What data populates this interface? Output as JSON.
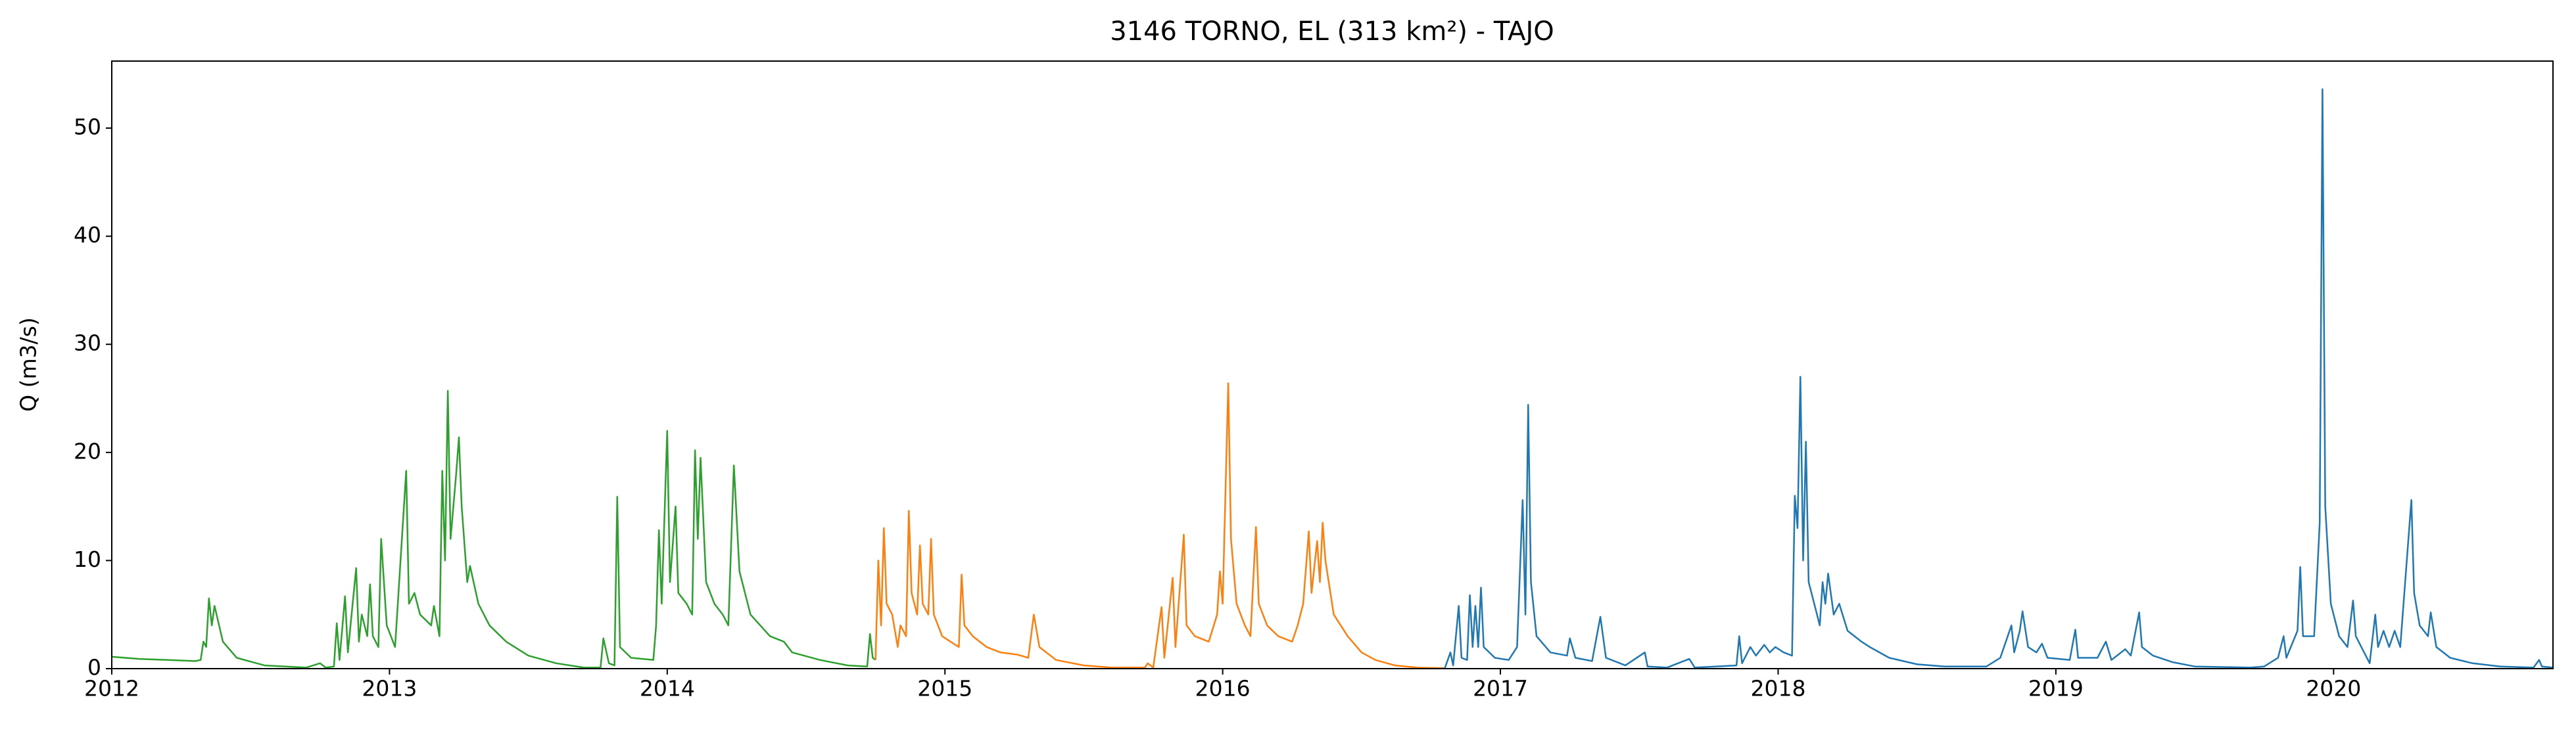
{
  "chart_data": {
    "type": "line",
    "title": "3146 TORNO, EL (313 km²) - TAJO",
    "y_label": "Q (m3/s)",
    "xlim": [
      2012,
      2020.79
    ],
    "xticks": [
      2012,
      2013,
      2014,
      2015,
      2016,
      2017,
      2018,
      2019,
      2020
    ],
    "ylim": [
      0,
      56.2
    ],
    "yticks": [
      0,
      10,
      20,
      30,
      40,
      50
    ],
    "grid": false,
    "series": [
      {
        "color": "#2ca02c",
        "x": [
          2012.0,
          2012.1,
          2012.2,
          2012.3,
          2012.32,
          2012.33,
          2012.34,
          2012.35,
          2012.36,
          2012.37,
          2012.4,
          2012.45,
          2012.55,
          2012.7,
          2012.75,
          2012.77,
          2012.8,
          2012.81,
          2012.82,
          2012.84,
          2012.85,
          2012.88,
          2012.89,
          2012.9,
          2012.92,
          2012.93,
          2012.94,
          2012.96,
          2012.97,
          2012.99,
          2013.02,
          2013.06,
          2013.07,
          2013.09,
          2013.11,
          2013.15,
          2013.16,
          2013.18,
          2013.19,
          2013.2,
          2013.21,
          2013.22,
          2013.24,
          2013.25,
          2013.26,
          2013.28,
          2013.29,
          2013.32,
          2013.36,
          2013.42,
          2013.5,
          2013.6,
          2013.7,
          2013.76,
          2013.77,
          2013.79,
          2013.81,
          2013.82,
          2013.83,
          2013.87,
          2013.95,
          2013.96,
          2013.97,
          2013.98,
          2014.0,
          2014.01,
          2014.03,
          2014.04,
          2014.07,
          2014.09,
          2014.1,
          2014.11,
          2014.12,
          2014.14,
          2014.17,
          2014.2,
          2014.22,
          2014.24,
          2014.26,
          2014.3,
          2014.37,
          2014.42,
          2014.45,
          2014.55,
          2014.65,
          2014.72,
          2014.73,
          2014.74,
          2014.75
        ],
        "values": [
          1.1,
          0.9,
          0.8,
          0.7,
          0.8,
          2.5,
          2.0,
          6.5,
          4.0,
          5.8,
          2.5,
          1.0,
          0.3,
          0.1,
          0.5,
          0.1,
          0.2,
          4.2,
          0.8,
          6.7,
          1.5,
          9.3,
          2.5,
          5.0,
          3.0,
          7.8,
          3.0,
          2.0,
          12.0,
          4.0,
          2.0,
          18.3,
          6.0,
          7.0,
          5.0,
          4.0,
          5.8,
          3.0,
          18.3,
          10,
          25.7,
          12,
          18,
          21.4,
          15,
          8,
          9.5,
          6,
          4,
          2.5,
          1.2,
          0.5,
          0.1,
          0.1,
          2.8,
          0.5,
          0.3,
          15.9,
          2.0,
          1.0,
          0.8,
          4.0,
          12.8,
          6,
          22.0,
          8,
          15,
          7,
          6,
          5,
          20.2,
          12,
          19.5,
          8,
          6,
          5,
          4,
          18.8,
          9,
          5,
          3,
          2.5,
          1.5,
          0.8,
          0.3,
          0.2,
          3.2,
          1.0,
          0.8
        ]
      },
      {
        "color": "#ff7f0e",
        "x": [
          2014.75,
          2014.76,
          2014.77,
          2014.78,
          2014.79,
          2014.81,
          2014.83,
          2014.84,
          2014.86,
          2014.87,
          2014.88,
          2014.9,
          2014.91,
          2014.92,
          2014.94,
          2014.95,
          2014.96,
          2014.99,
          2015.02,
          2015.05,
          2015.06,
          2015.07,
          2015.1,
          2015.15,
          2015.2,
          2015.26,
          2015.3,
          2015.32,
          2015.34,
          2015.4,
          2015.5,
          2015.6,
          2015.72,
          2015.73,
          2015.75,
          2015.78,
          2015.79,
          2015.82,
          2015.83,
          2015.86,
          2015.87,
          2015.9,
          2015.95,
          2015.98,
          2015.99,
          2016.0,
          2016.02,
          2016.03,
          2016.05,
          2016.08,
          2016.1,
          2016.12,
          2016.13,
          2016.16,
          2016.2,
          2016.25,
          2016.27,
          2016.29,
          2016.31,
          2016.32,
          2016.34,
          2016.35,
          2016.36,
          2016.37,
          2016.4,
          2016.45,
          2016.5,
          2016.55,
          2016.62,
          2016.7,
          2016.8
        ],
        "values": [
          0.8,
          10,
          4,
          13,
          6,
          5,
          2,
          4,
          3,
          14.6,
          7,
          5,
          11.4,
          6,
          5,
          12,
          5,
          3,
          2.5,
          2,
          8.7,
          4,
          3,
          2,
          1.5,
          1.3,
          1.0,
          5.0,
          2,
          0.8,
          0.3,
          0.1,
          0.1,
          0.5,
          0.1,
          5.7,
          1,
          8.4,
          2,
          12.4,
          4,
          3,
          2.5,
          5,
          9,
          6,
          26.4,
          12,
          6,
          4,
          3,
          13.1,
          6,
          4,
          3,
          2.5,
          4,
          6,
          12.7,
          7,
          11.8,
          8,
          13.5,
          10,
          5,
          3,
          1.5,
          0.8,
          0.3,
          0.1,
          0.05
        ]
      },
      {
        "color": "#1f77b4",
        "x": [
          2016.8,
          2016.82,
          2016.83,
          2016.85,
          2016.86,
          2016.88,
          2016.89,
          2016.9,
          2016.91,
          2016.92,
          2016.93,
          2016.94,
          2016.98,
          2017.03,
          2017.06,
          2017.08,
          2017.09,
          2017.1,
          2017.11,
          2017.13,
          2017.18,
          2017.24,
          2017.25,
          2017.27,
          2017.33,
          2017.36,
          2017.38,
          2017.45,
          2017.52,
          2017.53,
          2017.6,
          2017.68,
          2017.7,
          2017.85,
          2017.86,
          2017.87,
          2017.9,
          2017.92,
          2017.95,
          2017.97,
          2017.99,
          2018.02,
          2018.05,
          2018.06,
          2018.07,
          2018.08,
          2018.09,
          2018.1,
          2018.11,
          2018.13,
          2018.15,
          2018.16,
          2018.17,
          2018.18,
          2018.2,
          2018.22,
          2018.25,
          2018.3,
          2018.33,
          2018.4,
          2018.5,
          2018.6,
          2018.75,
          2018.8,
          2018.84,
          2018.85,
          2018.87,
          2018.88,
          2018.9,
          2018.93,
          2018.95,
          2018.97,
          2019.05,
          2019.07,
          2019.08,
          2019.15,
          2019.18,
          2019.2,
          2019.25,
          2019.27,
          2019.3,
          2019.31,
          2019.35,
          2019.42,
          2019.5,
          2019.7,
          2019.75,
          2019.8,
          2019.82,
          2019.83,
          2019.87,
          2019.88,
          2019.89,
          2019.93,
          2019.95,
          2019.96,
          2019.97,
          2019.99,
          2020.02,
          2020.05,
          2020.07,
          2020.08,
          2020.1,
          2020.13,
          2020.15,
          2020.16,
          2020.18,
          2020.2,
          2020.22,
          2020.24,
          2020.28,
          2020.29,
          2020.31,
          2020.34,
          2020.35,
          2020.37,
          2020.42,
          2020.5,
          2020.6,
          2020.72,
          2020.74,
          2020.75,
          2020.79
        ],
        "values": [
          0.05,
          1.5,
          0.3,
          5.8,
          1,
          0.8,
          6.8,
          2,
          5.8,
          2,
          7.5,
          2,
          1,
          0.8,
          2,
          15.6,
          5,
          24.4,
          8,
          3,
          1.5,
          1.2,
          2.8,
          1,
          0.7,
          4.8,
          1,
          0.3,
          1.5,
          0.2,
          0.1,
          0.9,
          0.1,
          0.3,
          3,
          0.5,
          2,
          1.2,
          2.2,
          1.5,
          2.0,
          1.5,
          1.2,
          16,
          13,
          27.0,
          10,
          21,
          8,
          6,
          4,
          8,
          6,
          8.8,
          5,
          6,
          3.5,
          2.5,
          2,
          1,
          0.4,
          0.2,
          0.2,
          1,
          4,
          1.5,
          3.5,
          5.3,
          2,
          1.5,
          2.3,
          1,
          0.8,
          3.6,
          1,
          1,
          2.5,
          0.8,
          1.8,
          1.2,
          5.2,
          2,
          1.2,
          0.6,
          0.2,
          0.1,
          0.2,
          1,
          3,
          1,
          3.5,
          9.4,
          3,
          3,
          13.5,
          53.6,
          15,
          6,
          3,
          2,
          6.3,
          3,
          2,
          0.5,
          5,
          2,
          3.5,
          2,
          3.5,
          2,
          15.6,
          7,
          4,
          3,
          5.2,
          2,
          1,
          0.5,
          0.2,
          0.1,
          0.8,
          0.2,
          0.1
        ]
      }
    ]
  }
}
